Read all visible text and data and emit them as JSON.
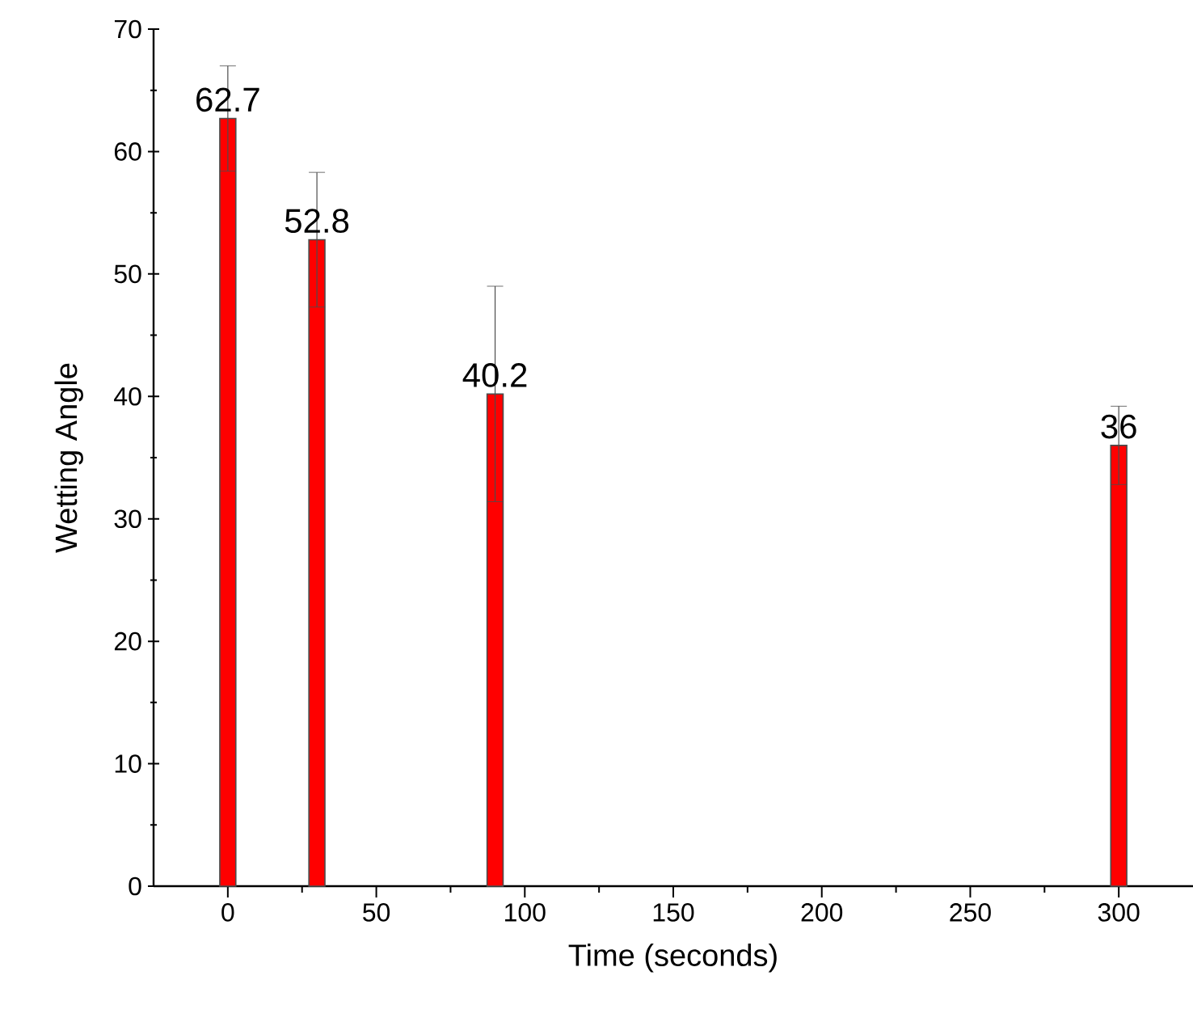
{
  "chart_data": {
    "type": "bar",
    "xlabel": "Time (seconds)",
    "ylabel": "Wetting Angle",
    "x": [
      0,
      30,
      90,
      300
    ],
    "values": [
      62.7,
      52.8,
      40.2,
      36
    ],
    "errors": [
      4.3,
      5.5,
      8.8,
      3.2
    ],
    "color": "#ff0000",
    "data_labels": true,
    "xlim": [
      -25,
      325
    ],
    "ylim": [
      0,
      70
    ],
    "xticks": [
      0,
      50,
      100,
      150,
      200,
      250,
      300
    ],
    "yticks": [
      0,
      10,
      20,
      30,
      40,
      50,
      60,
      70
    ],
    "grid": false
  }
}
